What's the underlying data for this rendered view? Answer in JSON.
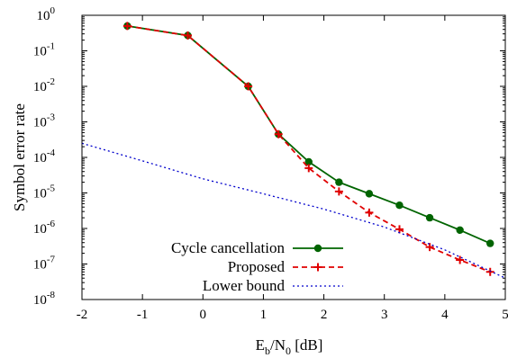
{
  "chart_data": {
    "type": "line",
    "xlabel": "E_b/N_0 [dB]",
    "ylabel": "Symbol error rate",
    "xlim": [
      -2,
      5
    ],
    "ylim": [
      1e-08,
      1
    ],
    "yscale": "log",
    "x_ticks": [
      -2,
      -1,
      0,
      1,
      2,
      3,
      4,
      5
    ],
    "x_tick_labels": [
      "-2",
      "-1",
      "0",
      "1",
      "2",
      "3",
      "4",
      "5"
    ],
    "y_ticks": [
      1e-08,
      1e-07,
      1e-06,
      1e-05,
      0.0001,
      0.001,
      0.01,
      0.1,
      1
    ],
    "y_tick_exponents": [
      "-8",
      "-7",
      "-6",
      "-5",
      "-4",
      "-3",
      "-2",
      "-1",
      "0"
    ],
    "y_tick_base": "10",
    "grid": false,
    "legend_position": "bottom-left",
    "series": [
      {
        "name": "Cycle cancellation",
        "color": "#006400",
        "style": "solid",
        "marker": "circle",
        "x": [
          -1.25,
          -0.25,
          0.75,
          1.25,
          1.75,
          2.25,
          2.75,
          3.25,
          3.75,
          4.25,
          4.75
        ],
        "y": [
          0.5,
          0.27,
          0.01,
          0.00045,
          7.5e-05,
          2e-05,
          9.5e-06,
          4.5e-06,
          2e-06,
          9e-07,
          3.8e-07
        ]
      },
      {
        "name": "Proposed",
        "color": "#e00000",
        "style": "dashed",
        "marker": "plus",
        "x": [
          -1.25,
          -0.25,
          0.75,
          1.25,
          1.75,
          2.25,
          2.75,
          3.25,
          3.75,
          4.25,
          4.75
        ],
        "y": [
          0.5,
          0.27,
          0.01,
          0.00045,
          5e-05,
          1.1e-05,
          2.8e-06,
          9.5e-07,
          3e-07,
          1.3e-07,
          6e-08
        ]
      },
      {
        "name": "Lower bound",
        "color": "#0000cc",
        "style": "dotted",
        "marker": "none",
        "x": [
          -2,
          -1,
          0,
          1,
          2,
          3,
          4,
          5
        ],
        "y": [
          0.00025,
          8e-05,
          2.5e-05,
          9.5e-06,
          3.5e-06,
          1.1e-06,
          2.5e-07,
          4e-08
        ]
      }
    ]
  }
}
